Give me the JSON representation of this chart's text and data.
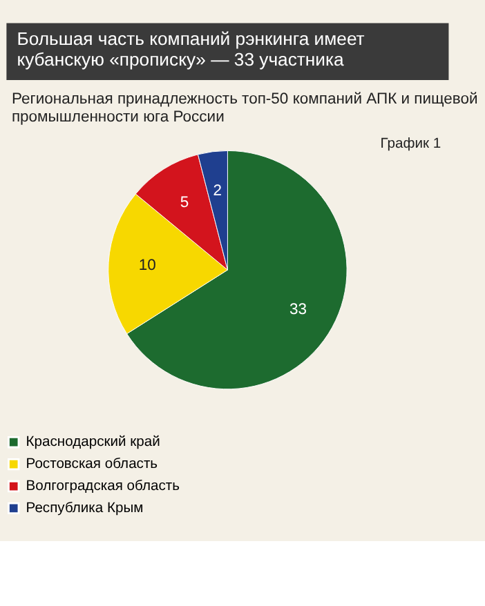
{
  "chart_data": {
    "type": "pie",
    "title": "Большая часть компаний рэнкинга имеет кубанскую «прописку»  — 33 участника",
    "subtitle": "Региональная принадлежность топ-50 компаний АПК и пищевой промышленности юга России",
    "annotations": [
      "График 1"
    ],
    "categories": [
      "Краснодарский край",
      "Ростовская область",
      "Волгоградская область",
      "Республика Крым"
    ],
    "values": [
      33,
      10,
      5,
      2
    ],
    "colors": [
      "#1d6b2f",
      "#f7d800",
      "#d3141d",
      "#1f3f8f"
    ],
    "data_labels": true,
    "legend": "bottom"
  }
}
